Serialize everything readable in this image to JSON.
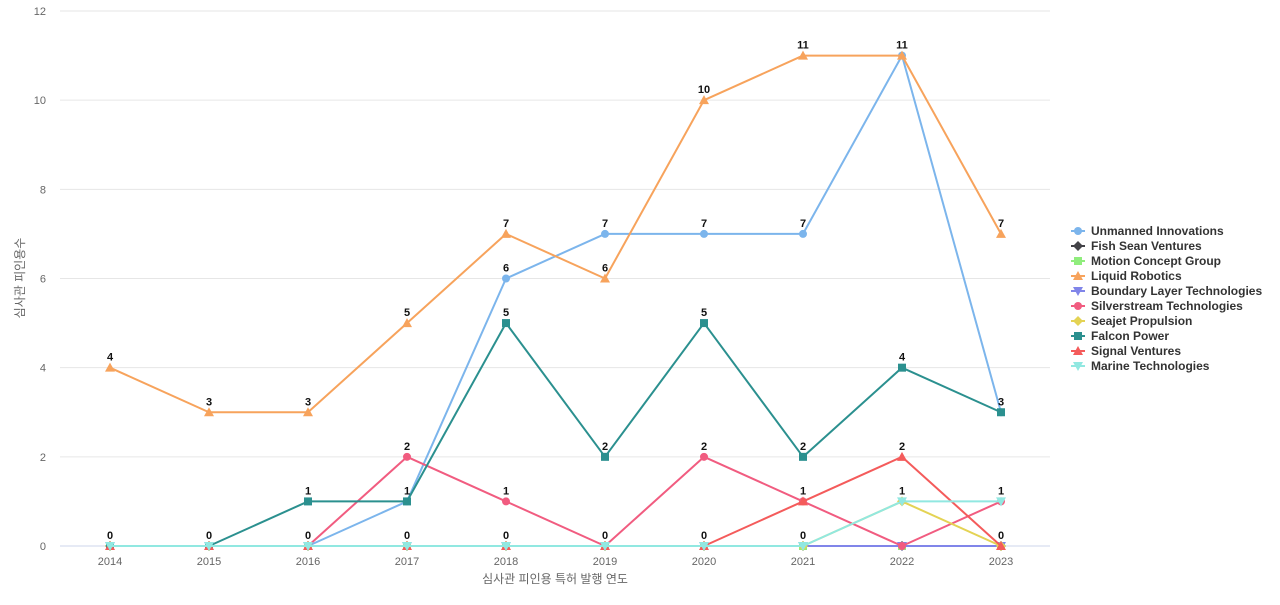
{
  "chart_data": {
    "type": "line",
    "xlabel": "심사관 피인용 특허 발행 연도",
    "ylabel": "심사관 피인용수",
    "x": [
      "2014",
      "2015",
      "2016",
      "2017",
      "2018",
      "2019",
      "2020",
      "2021",
      "2022",
      "2023"
    ],
    "ylim": [
      0,
      12
    ],
    "yticks": [
      0,
      2,
      4,
      6,
      8,
      10,
      12
    ],
    "grid": true,
    "legend_position": "right",
    "series": [
      {
        "name": "Unmanned Innovations",
        "color": "#7cb5ec",
        "marker": "circle",
        "values": [
          0,
          0,
          0,
          1,
          6,
          7,
          7,
          7,
          11,
          3
        ]
      },
      {
        "name": "Fish Sean Ventures",
        "color": "#434348",
        "marker": "diamond",
        "values": [
          0,
          0,
          0,
          0,
          0,
          0,
          0,
          0,
          0,
          0
        ]
      },
      {
        "name": "Motion Concept Group",
        "color": "#90ed7d",
        "marker": "square",
        "values": [
          0,
          0,
          0,
          0,
          0,
          0,
          0,
          0,
          0,
          0
        ]
      },
      {
        "name": "Liquid Robotics",
        "color": "#f7a35c",
        "marker": "triangle",
        "values": [
          4,
          3,
          3,
          5,
          7,
          6,
          10,
          11,
          11,
          7
        ]
      },
      {
        "name": "Boundary Layer Technologies",
        "color": "#8085e9",
        "marker": "triangle-down",
        "values": [
          0,
          0,
          0,
          0,
          0,
          0,
          0,
          0,
          0,
          0
        ]
      },
      {
        "name": "Silverstream Technologies",
        "color": "#f15c80",
        "marker": "circle",
        "values": [
          0,
          0,
          0,
          2,
          1,
          0,
          2,
          1,
          0,
          1
        ]
      },
      {
        "name": "Seajet Propulsion",
        "color": "#e4d354",
        "marker": "diamond",
        "values": [
          0,
          0,
          0,
          0,
          0,
          0,
          0,
          0,
          1,
          0
        ]
      },
      {
        "name": "Falcon Power",
        "color": "#2b908f",
        "marker": "square",
        "values": [
          0,
          0,
          1,
          1,
          5,
          2,
          5,
          2,
          4,
          3
        ]
      },
      {
        "name": "Signal Ventures",
        "color": "#f45b5b",
        "marker": "triangle",
        "values": [
          0,
          0,
          0,
          0,
          0,
          0,
          0,
          1,
          2,
          0
        ]
      },
      {
        "name": "Marine Technologies",
        "color": "#91e8e1",
        "marker": "triangle-down",
        "values": [
          0,
          0,
          0,
          0,
          0,
          0,
          0,
          0,
          1,
          1
        ]
      }
    ],
    "data_labels": [
      {
        "series": "Marine Technologies",
        "values": [
          0,
          0,
          0,
          0,
          0,
          0,
          0,
          0,
          1,
          1
        ]
      },
      {
        "series": "Liquid Robotics",
        "values": [
          4,
          3,
          3,
          5,
          7,
          6,
          10,
          11,
          11,
          7
        ]
      },
      {
        "series": "Unmanned Innovations",
        "values": [
          null,
          null,
          null,
          null,
          6,
          7,
          7,
          7,
          null,
          3
        ]
      },
      {
        "series": "Falcon Power",
        "values": [
          null,
          null,
          1,
          1,
          5,
          2,
          5,
          2,
          4,
          null
        ]
      },
      {
        "series": "Silverstream Technologies",
        "values": [
          null,
          null,
          null,
          2,
          1,
          null,
          2,
          1,
          null,
          null
        ]
      },
      {
        "series": "Signal Ventures",
        "values": [
          null,
          null,
          null,
          null,
          null,
          null,
          null,
          null,
          2,
          0
        ]
      }
    ]
  }
}
